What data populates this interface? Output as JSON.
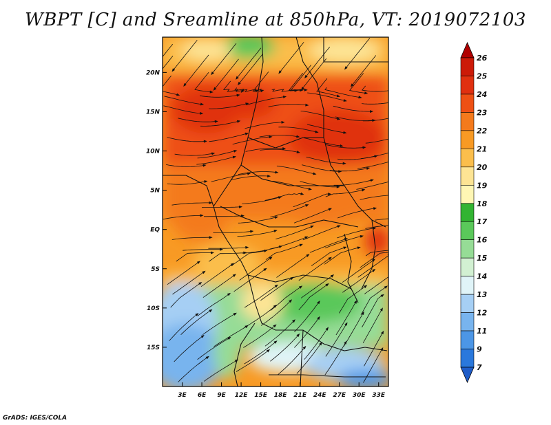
{
  "title": "WBPT [C] and Sreamline at 850hPa, VT: 2019072103",
  "credit": "GrADS: IGES/COLA",
  "map": {
    "lat_labels": [
      "20N",
      "15N",
      "10N",
      "5N",
      "EQ",
      "5S",
      "10S",
      "15S"
    ],
    "lon_labels": [
      "3E",
      "6E",
      "9E",
      "12E",
      "15E",
      "18E",
      "21E",
      "24E",
      "27E",
      "30E",
      "33E"
    ],
    "lon_range": [
      0,
      34.5
    ],
    "lat_range": [
      -20,
      24.5
    ]
  },
  "colorbar": {
    "labels": [
      "26",
      "25",
      "24",
      "23",
      "22",
      "21",
      "20",
      "19",
      "18",
      "17",
      "16",
      "15",
      "14",
      "13",
      "12",
      "11",
      "9",
      "7"
    ],
    "colors": [
      "#b00000",
      "#cc1a08",
      "#e03010",
      "#ee5014",
      "#f47a1c",
      "#f89a24",
      "#fbbe4c",
      "#fde494",
      "#fff6b4",
      "#32b432",
      "#5ac85a",
      "#96dc96",
      "#d2f0d2",
      "#e0f4f8",
      "#a6cff4",
      "#78b4ee",
      "#4c96e6",
      "#2a78dc",
      "#1e5cc8"
    ]
  },
  "chart_data": {
    "type": "heatmap",
    "variable": "WBPT [C]",
    "level": "850hPa",
    "valid_time": "2019072103",
    "xlabel": "",
    "ylabel": "",
    "x_ticks": [
      "3E",
      "6E",
      "9E",
      "12E",
      "15E",
      "18E",
      "21E",
      "24E",
      "27E",
      "30E",
      "33E"
    ],
    "y_ticks": [
      "20N",
      "15N",
      "10N",
      "5N",
      "EQ",
      "5S",
      "10S",
      "15S"
    ],
    "xlim": [
      0,
      34.5
    ],
    "ylim": [
      -20,
      24.5
    ],
    "regions": [
      {
        "area": "north of 22N, 8E-12E",
        "value": 17
      },
      {
        "area": "north 20N-24N",
        "value": 21
      },
      {
        "area": "8N-18N band",
        "value": 24
      },
      {
        "area": "0-8N",
        "value": 22
      },
      {
        "area": "EQ-6S",
        "value": 21
      },
      {
        "area": "6S-8S",
        "value": 20
      },
      {
        "area": "8S-14S",
        "value": 17
      },
      {
        "area": "14S-20S west",
        "value": 13
      },
      {
        "area": "17S-20S east",
        "value": 11
      }
    ]
  }
}
